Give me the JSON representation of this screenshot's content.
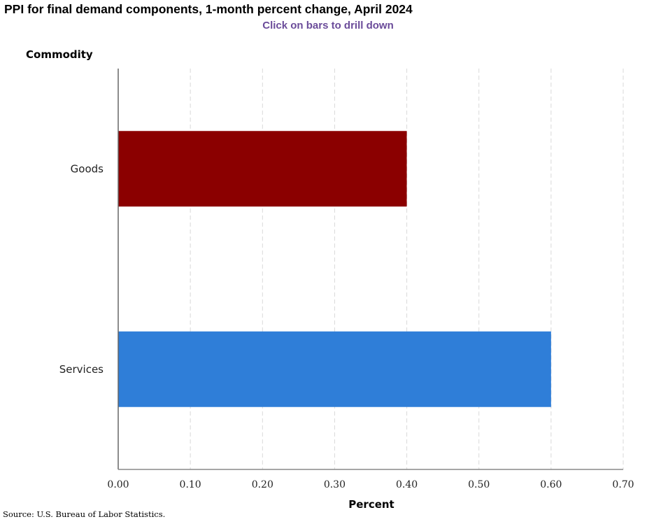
{
  "header": {
    "title": "PPI for final demand components, 1-month percent change, April 2024",
    "subtitle": "Click on bars to drill down"
  },
  "footer": {
    "source": "Source: U.S. Bureau of Labor Statistics."
  },
  "chart_data": {
    "type": "bar",
    "orientation": "horizontal",
    "title": "PPI for final demand components, 1-month percent change, April 2024",
    "subtitle": "Click on bars to drill down",
    "xlabel": "Percent",
    "ylabel": "Commodity",
    "categories": [
      "Goods",
      "Services"
    ],
    "values": [
      0.4,
      0.6
    ],
    "colors": [
      "#8b0000",
      "#2f7ed8"
    ],
    "xlim": [
      0,
      0.7
    ],
    "xticks": [
      0.0,
      0.1,
      0.2,
      0.3,
      0.4,
      0.5,
      0.6,
      0.7
    ],
    "xtick_labels": [
      "0.00",
      "0.10",
      "0.20",
      "0.30",
      "0.40",
      "0.50",
      "0.60",
      "0.70"
    ],
    "grid": "vertical dashed",
    "legend": "none"
  }
}
